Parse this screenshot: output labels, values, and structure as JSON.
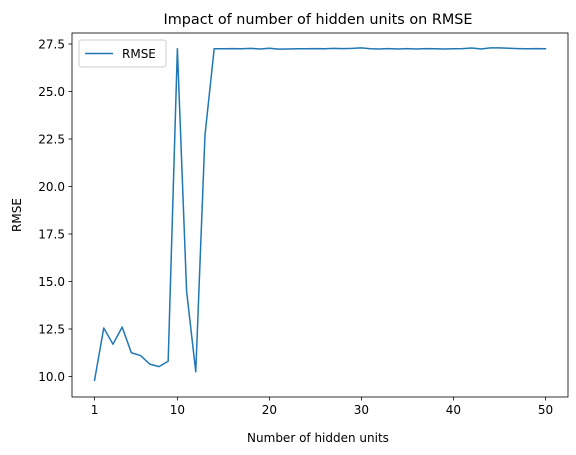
{
  "chart_data": {
    "type": "line",
    "title": "Impact of number of hidden units on RMSE",
    "xlabel": "Number of hidden units",
    "ylabel": "RMSE",
    "xlim": [
      -1.45,
      52.45
    ],
    "ylim": [
      8.92,
      28.08
    ],
    "xticks": [
      1,
      10,
      20,
      30,
      40,
      50
    ],
    "xtick_labels": [
      "1",
      "10",
      "20",
      "30",
      "40",
      "50"
    ],
    "yticks": [
      10.0,
      12.5,
      15.0,
      17.5,
      20.0,
      22.5,
      25.0,
      27.5
    ],
    "ytick_labels": [
      "10.0",
      "12.5",
      "15.0",
      "17.5",
      "20.0",
      "22.5",
      "25.0",
      "27.5"
    ],
    "grid": false,
    "legend_position": "upper-left",
    "series": [
      {
        "name": "RMSE",
        "color": "#1f77b4",
        "x": [
          1,
          2,
          3,
          4,
          5,
          6,
          7,
          8,
          9,
          10,
          11,
          12,
          13,
          14,
          15,
          16,
          17,
          18,
          19,
          20,
          21,
          22,
          23,
          24,
          25,
          26,
          27,
          28,
          29,
          30,
          31,
          32,
          33,
          34,
          35,
          36,
          37,
          38,
          39,
          40,
          41,
          42,
          43,
          44,
          45,
          46,
          47,
          48,
          49,
          50
        ],
        "y": [
          9.8,
          12.55,
          11.7,
          12.6,
          11.25,
          11.1,
          10.65,
          10.52,
          10.8,
          27.25,
          14.5,
          10.25,
          22.7,
          27.25,
          27.25,
          27.26,
          27.25,
          27.27,
          27.24,
          27.28,
          27.23,
          27.24,
          27.25,
          27.25,
          27.26,
          27.25,
          27.27,
          27.26,
          27.27,
          27.3,
          27.25,
          27.24,
          27.26,
          27.24,
          27.26,
          27.24,
          27.26,
          27.25,
          27.24,
          27.25,
          27.26,
          27.29,
          27.24,
          27.3,
          27.3,
          27.28,
          27.26,
          27.25,
          27.26,
          27.25
        ]
      }
    ]
  }
}
